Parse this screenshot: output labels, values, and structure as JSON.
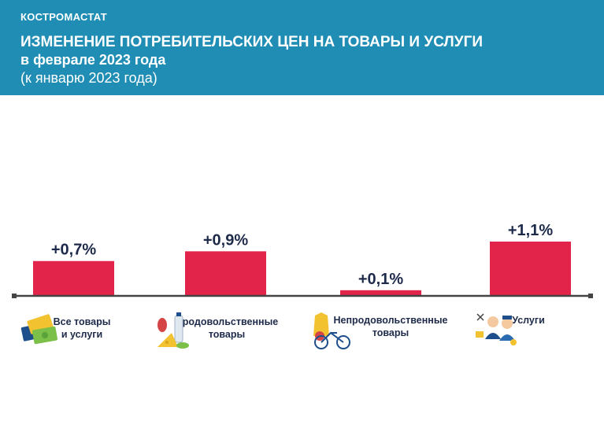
{
  "header": {
    "org": "КОСТРОМАСТАТ",
    "title_line1": "ИЗМЕНЕНИЕ ПОТРЕБИТЕЛЬСКИХ ЦЕН НА ТОВАРЫ И УСЛУГИ",
    "title_line2": "в феврале 2023 года",
    "title_line3": "(к январю 2023 года)"
  },
  "colors": {
    "header_bg": "#1f8db4",
    "bar": "#e2244a",
    "axis": "#444444",
    "text": "#1e2a4a"
  },
  "chart_data": {
    "type": "bar",
    "title": "ИЗМЕНЕНИЕ ПОТРЕБИТЕЛЬСКИХ ЦЕН НА ТОВАРЫ И УСЛУГИ в феврале 2023 года",
    "subtitle": "(к январю 2023 года)",
    "categories": [
      [
        "Все товары",
        "и услуги"
      ],
      [
        "Продовольственные",
        "товары"
      ],
      [
        "Непродовольственные",
        "товары"
      ],
      [
        "Услуги"
      ]
    ],
    "values": [
      0.7,
      0.9,
      0.1,
      1.1
    ],
    "labels": [
      "+0,7%",
      "+0,9%",
      "+0,1%",
      "+1,1%"
    ],
    "icons": [
      "money-cards-icon",
      "food-products-icon",
      "clothes-bicycle-icon",
      "services-people-icon"
    ],
    "unit": "%",
    "ylim": [
      0,
      1.1
    ],
    "xlabel": "",
    "ylabel": "",
    "grid": false
  }
}
